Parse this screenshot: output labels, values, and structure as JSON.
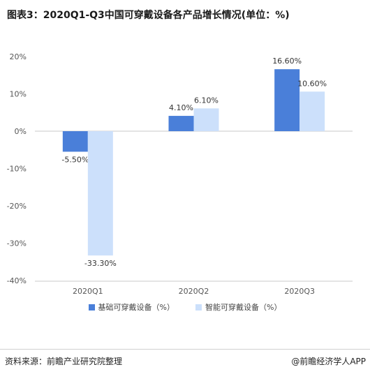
{
  "title": "图表3：2020Q1-Q3中国可穿戴设备各产品增长情况(单位：%)",
  "colors": {
    "series1": "#4a7fd9",
    "series2": "#cce0fb",
    "axis": "#c8c8c8"
  },
  "chart_data": {
    "type": "bar",
    "categories": [
      "2020Q1",
      "2020Q2",
      "2020Q3"
    ],
    "series": [
      {
        "name": "基础可穿戴设备（%）",
        "values": [
          -5.5,
          4.1,
          16.6
        ],
        "labels": [
          "-5.50%",
          "4.10%",
          "16.60%"
        ]
      },
      {
        "name": "智能可穿戴设备（%）",
        "values": [
          -33.3,
          6.1,
          10.6
        ],
        "labels": [
          "-33.30%",
          "6.10%",
          "10.60%"
        ]
      }
    ],
    "yticks": [
      20,
      10,
      0,
      -10,
      -20,
      -30,
      -40
    ],
    "yticklabels": [
      "20%",
      "10%",
      "0%",
      "-10%",
      "-20%",
      "-30%",
      "-40%"
    ],
    "ylim": [
      -40,
      20
    ],
    "legend": "bottom",
    "grid": false
  },
  "footer": {
    "source": "资料来源：前瞻产业研究院整理",
    "brand": "@前瞻经济学人APP"
  }
}
